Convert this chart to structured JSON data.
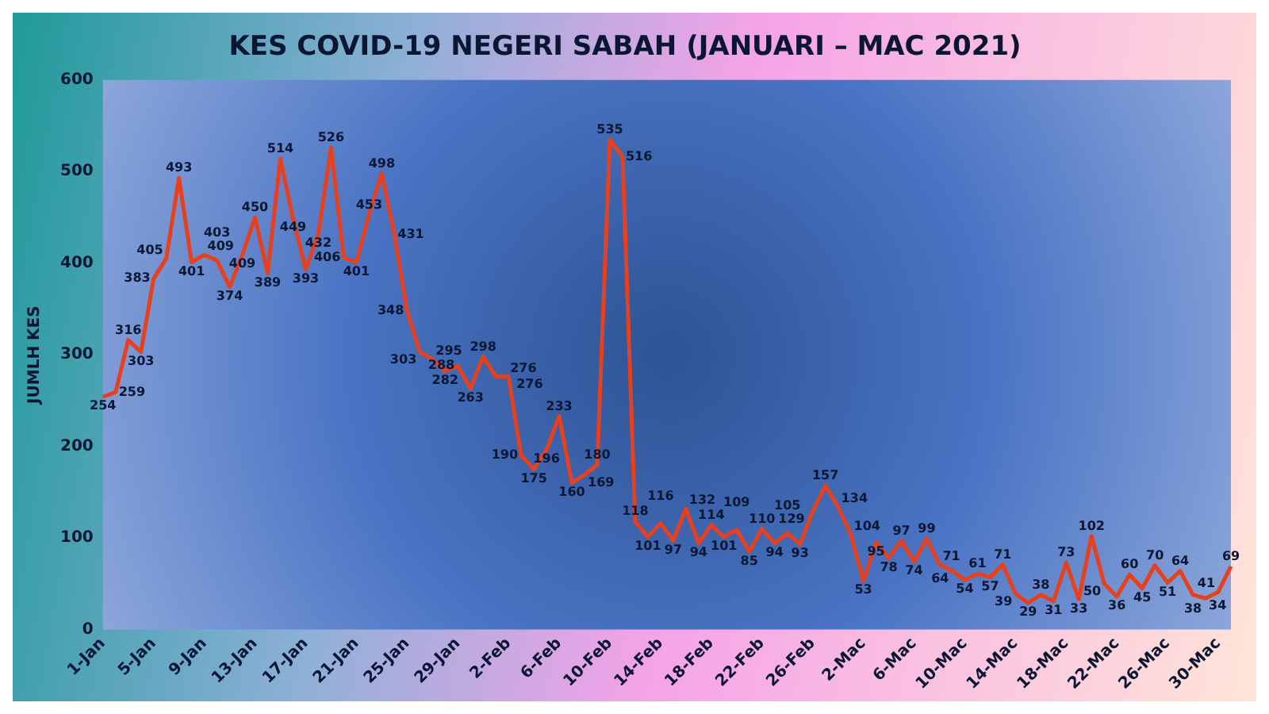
{
  "chart_data": {
    "type": "line",
    "title": "KES COVID-19 NEGERI SABAH (JANUARI – MAC 2021)",
    "ylabel": "JUMLH KES",
    "categories": [
      "1-Jan",
      null,
      null,
      null,
      "5-Jan",
      null,
      null,
      null,
      "9-Jan",
      null,
      null,
      null,
      "13-Jan",
      null,
      null,
      null,
      "17-Jan",
      null,
      null,
      null,
      "21-Jan",
      null,
      null,
      null,
      "25-Jan",
      null,
      null,
      null,
      "29-Jan",
      null,
      null,
      null,
      "2-Feb",
      null,
      null,
      null,
      "6-Feb",
      null,
      null,
      null,
      "10-Feb",
      null,
      null,
      null,
      "14-Feb",
      null,
      null,
      null,
      "18-Feb",
      null,
      null,
      null,
      "22-Feb",
      null,
      null,
      null,
      "26-Feb",
      null,
      null,
      null,
      "2-Mac",
      null,
      null,
      null,
      "6-Mac",
      null,
      null,
      null,
      "10-Mac",
      null,
      null,
      null,
      "14-Mac",
      null,
      null,
      null,
      "18-Mac",
      null,
      null,
      null,
      "22-Mac",
      null,
      null,
      null,
      "26-Mac",
      null,
      null,
      null,
      "30-Mac",
      null
    ],
    "series": [
      {
        "color": "#e8401c",
        "values": [
          254,
          259,
          316,
          303,
          383,
          405,
          493,
          401,
          409,
          403,
          374,
          409,
          450,
          389,
          514,
          449,
          393,
          432,
          526,
          406,
          401,
          453,
          498,
          431,
          348,
          303,
          295,
          282,
          288,
          263,
          298,
          276,
          276,
          190,
          175,
          196,
          233,
          160,
          169,
          180,
          535,
          516,
          118,
          101,
          116,
          97,
          132,
          94,
          114,
          101,
          109,
          85,
          110,
          94,
          105,
          93,
          129,
          157,
          134,
          104,
          53,
          95,
          78,
          97,
          74,
          99,
          71,
          64,
          54,
          61,
          57,
          71,
          39,
          29,
          38,
          31,
          73,
          33,
          102,
          50,
          36,
          60,
          45,
          70,
          51,
          64,
          38,
          34,
          41,
          69
        ]
      }
    ],
    "ylim": [
      0,
      600
    ],
    "yticks": [
      0,
      100,
      200,
      300,
      400,
      500,
      600
    ],
    "grid": false,
    "legend": false,
    "marker": "none",
    "line_style": "solid",
    "data_labels": true
  }
}
